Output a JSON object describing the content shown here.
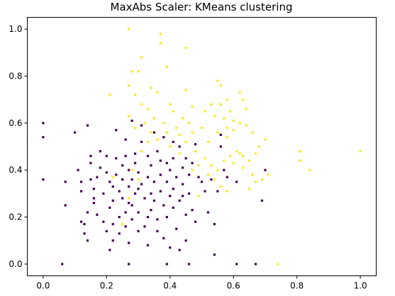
{
  "chart_data": {
    "type": "scatter",
    "title": "MaxAbs Scaler: KMeans clustering",
    "xlabel": "",
    "ylabel": "",
    "xlim": [
      -0.05,
      1.05
    ],
    "ylim": [
      -0.05,
      1.05
    ],
    "x_ticks": [
      "0.0",
      "0.2",
      "0.4",
      "0.6",
      "0.8",
      "1.0"
    ],
    "y_ticks": [
      "0.0",
      "0.2",
      "0.4",
      "0.6",
      "0.8",
      "1.0"
    ],
    "grid": false,
    "legend": "none",
    "colors": {
      "cluster_0": "#440154",
      "cluster_1": "#fde725"
    },
    "series": [
      {
        "values": [
          [
            0.0,
            0.6
          ],
          [
            0.0,
            0.54
          ],
          [
            0.0,
            0.36
          ],
          [
            0.06,
            0.0
          ],
          [
            0.07,
            0.35
          ],
          [
            0.07,
            0.25
          ],
          [
            0.1,
            0.56
          ],
          [
            0.11,
            0.4
          ],
          [
            0.12,
            0.35
          ],
          [
            0.12,
            0.31
          ],
          [
            0.12,
            0.18
          ],
          [
            0.13,
            0.17
          ],
          [
            0.13,
            0.13
          ],
          [
            0.14,
            0.1
          ],
          [
            0.14,
            0.59
          ],
          [
            0.14,
            0.22
          ],
          [
            0.15,
            0.46
          ],
          [
            0.15,
            0.43
          ],
          [
            0.15,
            0.36
          ],
          [
            0.16,
            0.32
          ],
          [
            0.16,
            0.28
          ],
          [
            0.16,
            0.26
          ],
          [
            0.17,
            0.21
          ],
          [
            0.17,
            0.37
          ],
          [
            0.18,
            0.41
          ],
          [
            0.19,
            0.3
          ],
          [
            0.19,
            0.18
          ],
          [
            0.2,
            0.46
          ],
          [
            0.2,
            0.39
          ],
          [
            0.2,
            0.14
          ],
          [
            0.21,
            0.06
          ],
          [
            0.21,
            0.35
          ],
          [
            0.21,
            0.24
          ],
          [
            0.22,
            0.17
          ],
          [
            0.22,
            0.33
          ],
          [
            0.22,
            0.27
          ],
          [
            0.23,
            0.57
          ],
          [
            0.23,
            0.45
          ],
          [
            0.23,
            0.38
          ],
          [
            0.24,
            0.31
          ],
          [
            0.24,
            0.2
          ],
          [
            0.24,
            0.13
          ],
          [
            0.25,
            0.42
          ],
          [
            0.25,
            0.36
          ],
          [
            0.25,
            0.28
          ],
          [
            0.26,
            0.53
          ],
          [
            0.26,
            0.46
          ],
          [
            0.26,
            0.22
          ],
          [
            0.26,
            0.16
          ],
          [
            0.27,
            0.4
          ],
          [
            0.27,
            0.33
          ],
          [
            0.27,
            0.09
          ],
          [
            0.27,
            0.0
          ],
          [
            0.28,
            0.61
          ],
          [
            0.28,
            0.36
          ],
          [
            0.28,
            0.25
          ],
          [
            0.28,
            0.19
          ],
          [
            0.29,
            0.47
          ],
          [
            0.29,
            0.3
          ],
          [
            0.29,
            0.43
          ],
          [
            0.3,
            0.39
          ],
          [
            0.3,
            0.32
          ],
          [
            0.3,
            0.22
          ],
          [
            0.3,
            0.14
          ],
          [
            0.31,
            0.59
          ],
          [
            0.31,
            0.52
          ],
          [
            0.31,
            0.34
          ],
          [
            0.32,
            0.28
          ],
          [
            0.32,
            0.16
          ],
          [
            0.33,
            0.46
          ],
          [
            0.33,
            0.37
          ],
          [
            0.33,
            0.08
          ],
          [
            0.34,
            0.42
          ],
          [
            0.34,
            0.3
          ],
          [
            0.34,
            0.23
          ],
          [
            0.35,
            0.56
          ],
          [
            0.35,
            0.35
          ],
          [
            0.35,
            0.27
          ],
          [
            0.36,
            0.19
          ],
          [
            0.36,
            0.14
          ],
          [
            0.37,
            0.44
          ],
          [
            0.37,
            0.38
          ],
          [
            0.37,
            0.31
          ],
          [
            0.38,
            0.25
          ],
          [
            0.38,
            0.11
          ],
          [
            0.38,
            0.54
          ],
          [
            0.39,
            0.43
          ],
          [
            0.39,
            0.35
          ],
          [
            0.39,
            0.2
          ],
          [
            0.39,
            0.0
          ],
          [
            0.4,
            0.4
          ],
          [
            0.4,
            0.29
          ],
          [
            0.4,
            0.07
          ],
          [
            0.41,
            0.45
          ],
          [
            0.41,
            0.32
          ],
          [
            0.41,
            0.24
          ],
          [
            0.42,
            0.15
          ],
          [
            0.42,
            0.37
          ],
          [
            0.43,
            0.5
          ],
          [
            0.43,
            0.27
          ],
          [
            0.43,
            0.06
          ],
          [
            0.44,
            0.41
          ],
          [
            0.44,
            0.34
          ],
          [
            0.45,
            0.21
          ],
          [
            0.45,
            0.1
          ],
          [
            0.45,
            0.45
          ],
          [
            0.46,
            0.38
          ],
          [
            0.46,
            0.3
          ],
          [
            0.46,
            0.0
          ],
          [
            0.47,
            0.23
          ],
          [
            0.48,
            0.51
          ],
          [
            0.48,
            0.18
          ],
          [
            0.49,
            0.37
          ],
          [
            0.5,
            0.35
          ],
          [
            0.51,
            0.31
          ],
          [
            0.52,
            0.22
          ],
          [
            0.53,
            0.36
          ],
          [
            0.54,
            0.17
          ],
          [
            0.54,
            0.04
          ],
          [
            0.55,
            0.31
          ],
          [
            0.56,
            0.55
          ],
          [
            0.57,
            0.4
          ],
          [
            0.58,
            0.37
          ],
          [
            0.61,
            0.0
          ],
          [
            0.67,
            0.0
          ],
          [
            0.69,
            0.27
          ],
          [
            0.7,
            0.4
          ],
          [
            0.56,
            0.5
          ],
          [
            0.61,
            0.35
          ],
          [
            0.36,
            0.48
          ],
          [
            0.41,
            0.52
          ],
          [
            0.18,
            0.48
          ],
          [
            0.27,
            0.26
          ],
          [
            0.33,
            0.2
          ],
          [
            0.44,
            0.29
          ],
          [
            0.22,
            0.1
          ],
          [
            0.25,
            0.36
          ],
          [
            0.47,
            0.43
          ]
        ]
      },
      {
        "values": [
          [
            0.27,
            1.0
          ],
          [
            0.37,
            0.98
          ],
          [
            0.37,
            0.94
          ],
          [
            0.45,
            0.92
          ],
          [
            0.31,
            0.88
          ],
          [
            0.39,
            0.84
          ],
          [
            0.28,
            0.82
          ],
          [
            0.3,
            0.82
          ],
          [
            0.55,
            0.78
          ],
          [
            0.56,
            0.76
          ],
          [
            0.27,
            0.76
          ],
          [
            0.34,
            0.75
          ],
          [
            0.36,
            0.73
          ],
          [
            0.45,
            0.74
          ],
          [
            0.21,
            0.72
          ],
          [
            0.29,
            0.72
          ],
          [
            0.58,
            0.7
          ],
          [
            0.62,
            0.73
          ],
          [
            0.63,
            0.7
          ],
          [
            0.31,
            0.68
          ],
          [
            0.4,
            0.68
          ],
          [
            0.47,
            0.67
          ],
          [
            0.53,
            0.68
          ],
          [
            0.56,
            0.68
          ],
          [
            0.59,
            0.65
          ],
          [
            0.33,
            0.66
          ],
          [
            0.35,
            0.62
          ],
          [
            0.41,
            0.65
          ],
          [
            0.44,
            0.62
          ],
          [
            0.51,
            0.65
          ],
          [
            0.54,
            0.63
          ],
          [
            0.57,
            0.62
          ],
          [
            0.6,
            0.61
          ],
          [
            0.64,
            0.66
          ],
          [
            0.62,
            0.6
          ],
          [
            0.27,
            0.63
          ],
          [
            0.29,
            0.58
          ],
          [
            0.32,
            0.6
          ],
          [
            0.34,
            0.56
          ],
          [
            0.38,
            0.6
          ],
          [
            0.42,
            0.58
          ],
          [
            0.47,
            0.56
          ],
          [
            0.5,
            0.58
          ],
          [
            0.55,
            0.56
          ],
          [
            0.58,
            0.54
          ],
          [
            0.6,
            0.57
          ],
          [
            0.64,
            0.59
          ],
          [
            0.66,
            0.56
          ],
          [
            0.7,
            0.53
          ],
          [
            0.68,
            0.5
          ],
          [
            0.62,
            0.47
          ],
          [
            0.6,
            0.43
          ],
          [
            0.63,
            0.41
          ],
          [
            0.66,
            0.38
          ],
          [
            0.69,
            0.36
          ],
          [
            0.71,
            0.38
          ],
          [
            0.81,
            0.48
          ],
          [
            0.81,
            0.44
          ],
          [
            0.84,
            0.4
          ],
          [
            1.0,
            0.48
          ],
          [
            0.74,
            0.0
          ],
          [
            0.45,
            0.52
          ],
          [
            0.48,
            0.48
          ],
          [
            0.51,
            0.45
          ],
          [
            0.53,
            0.42
          ],
          [
            0.55,
            0.4
          ],
          [
            0.57,
            0.44
          ],
          [
            0.59,
            0.46
          ],
          [
            0.61,
            0.48
          ],
          [
            0.63,
            0.46
          ],
          [
            0.65,
            0.44
          ],
          [
            0.67,
            0.47
          ],
          [
            0.4,
            0.5
          ],
          [
            0.36,
            0.53
          ],
          [
            0.33,
            0.52
          ],
          [
            0.31,
            0.48
          ],
          [
            0.43,
            0.47
          ],
          [
            0.49,
            0.42
          ],
          [
            0.52,
            0.38
          ],
          [
            0.54,
            0.36
          ],
          [
            0.56,
            0.33
          ],
          [
            0.58,
            0.31
          ],
          [
            0.67,
            0.35
          ],
          [
            0.65,
            0.32
          ],
          [
            0.27,
            0.28
          ],
          [
            0.28,
            0.4
          ],
          [
            0.3,
            0.36
          ],
          [
            0.25,
            0.17
          ],
          [
            0.49,
            0.29
          ],
          [
            0.39,
            0.56
          ],
          [
            0.46,
            0.6
          ],
          [
            0.52,
            0.52
          ],
          [
            0.58,
            0.58
          ],
          [
            0.43,
            0.55
          ],
          [
            0.22,
            0.37
          ],
          [
            0.47,
            0.4
          ]
        ]
      }
    ]
  }
}
